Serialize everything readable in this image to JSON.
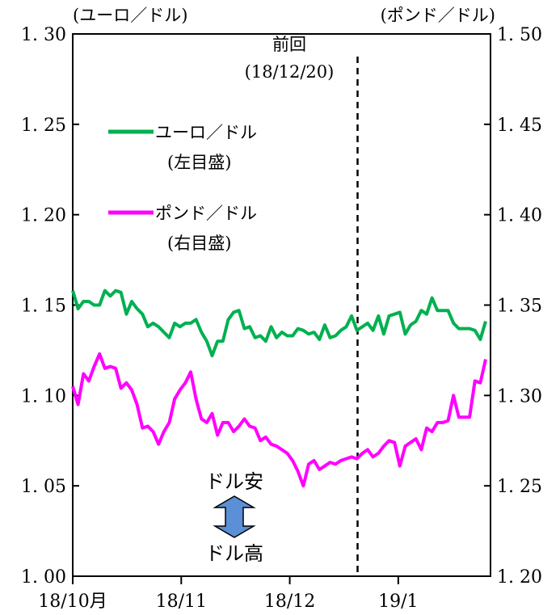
{
  "chart_data": {
    "type": "line",
    "left_axis_label": "(ユーロ／ドル)",
    "right_axis_label": "(ポンド／ドル)",
    "left_ylim": [
      1.0,
      1.3
    ],
    "right_ylim": [
      1.2,
      1.5
    ],
    "left_ticks": [
      "1. 00",
      "1. 05",
      "1. 10",
      "1. 15",
      "1. 20",
      "1. 25",
      "1. 30"
    ],
    "right_ticks": [
      "1. 20",
      "1. 25",
      "1. 30",
      "1. 35",
      "1. 40",
      "1. 45",
      "1. 50"
    ],
    "x_range": [
      0,
      77
    ],
    "x_ticks": [
      {
        "pos": 0,
        "label": "18/10月"
      },
      {
        "pos": 20,
        "label": "18/11"
      },
      {
        "pos": 40,
        "label": "18/12"
      },
      {
        "pos": 60,
        "label": "19/1"
      }
    ],
    "grid": false,
    "vline": {
      "pos": 52.5,
      "label_line1": "前回",
      "label_line2": "(18/12/20)"
    },
    "series": [
      {
        "name": "ユーロ／ドル",
        "axis_note": "(左目盛)",
        "axis": "left",
        "color": "#00b050",
        "values": [
          1.158,
          1.148,
          1.152,
          1.152,
          1.15,
          1.15,
          1.158,
          1.155,
          1.158,
          1.157,
          1.145,
          1.152,
          1.148,
          1.145,
          1.138,
          1.14,
          1.138,
          1.135,
          1.132,
          1.14,
          1.138,
          1.14,
          1.14,
          1.142,
          1.135,
          1.13,
          1.122,
          1.13,
          1.13,
          1.142,
          1.146,
          1.147,
          1.137,
          1.138,
          1.132,
          1.133,
          1.13,
          1.138,
          1.132,
          1.135,
          1.133,
          1.133,
          1.137,
          1.136,
          1.134,
          1.135,
          1.131,
          1.139,
          1.132,
          1.133,
          1.136,
          1.138,
          1.144,
          1.136,
          1.138,
          1.14,
          1.136,
          1.144,
          1.134,
          1.144,
          1.145,
          1.146,
          1.134,
          1.139,
          1.141,
          1.147,
          1.145,
          1.154,
          1.147,
          1.147,
          1.147,
          1.14,
          1.137,
          1.137,
          1.137,
          1.136,
          1.131,
          1.141
        ]
      },
      {
        "name": "ポンド／ドル",
        "axis_note": "(右目盛)",
        "axis": "right",
        "color": "#ff00ff",
        "values": [
          1.305,
          1.295,
          1.312,
          1.308,
          1.316,
          1.323,
          1.315,
          1.316,
          1.315,
          1.304,
          1.307,
          1.303,
          1.295,
          1.282,
          1.283,
          1.28,
          1.273,
          1.28,
          1.285,
          1.298,
          1.303,
          1.307,
          1.313,
          1.298,
          1.287,
          1.285,
          1.29,
          1.278,
          1.285,
          1.285,
          1.28,
          1.283,
          1.287,
          1.283,
          1.282,
          1.275,
          1.277,
          1.273,
          1.272,
          1.27,
          1.268,
          1.264,
          1.258,
          1.25,
          1.262,
          1.264,
          1.259,
          1.261,
          1.263,
          1.262,
          1.264,
          1.265,
          1.266,
          1.265,
          1.268,
          1.27,
          1.266,
          1.268,
          1.272,
          1.275,
          1.274,
          1.261,
          1.272,
          1.274,
          1.276,
          1.27,
          1.282,
          1.28,
          1.285,
          1.285,
          1.286,
          1.3,
          1.288,
          1.288,
          1.288,
          1.308,
          1.307,
          1.32
        ]
      }
    ],
    "annotations": {
      "weak_dollar": "ドル安",
      "strong_dollar": "ドル高"
    }
  },
  "colors": {
    "arrow_fill": "#5b8fd6",
    "arrow_stroke": "#000000"
  }
}
